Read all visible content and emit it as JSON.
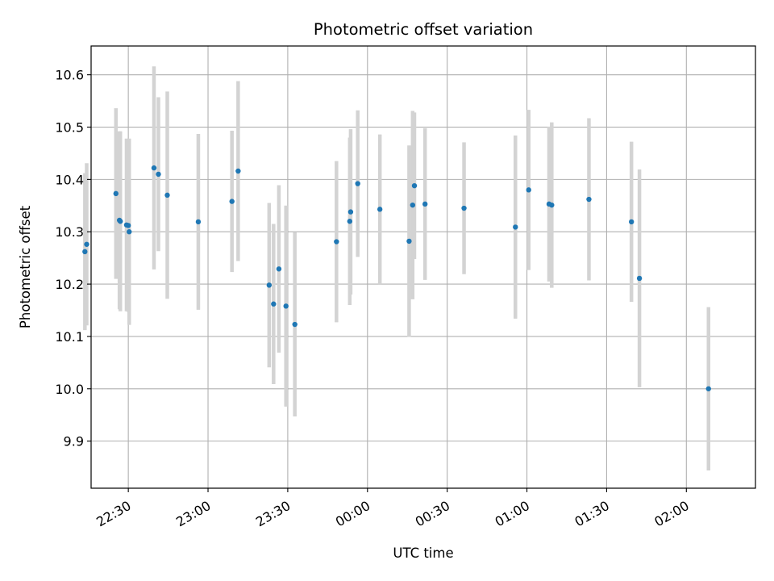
{
  "chart_data": {
    "type": "scatter",
    "title": "Photometric offset variation",
    "xlabel": "UTC time",
    "ylabel": "Photometric offset",
    "grid": true,
    "x_axis": {
      "kind": "time",
      "range": [
        "22:16",
        "02:26"
      ],
      "ticks": [
        "22:30",
        "23:00",
        "23:30",
        "00:00",
        "00:30",
        "01:00",
        "01:30",
        "02:00"
      ]
    },
    "y_axis": {
      "range": [
        9.81,
        10.655
      ],
      "ticks": [
        "9.9",
        "10.0",
        "10.1",
        "10.2",
        "10.3",
        "10.4",
        "10.5",
        "10.6"
      ]
    },
    "colors": {
      "marker": "#1f77b4",
      "errorbar": "#d3d3d3",
      "grid": "#b0b0b0"
    },
    "points": [
      {
        "x": "22:13:40",
        "y": 10.262,
        "yerr": 0.15
      },
      {
        "x": "22:14:20",
        "y": 10.276,
        "yerr": 0.155
      },
      {
        "x": "22:25:20",
        "y": 10.373,
        "yerr": 0.163
      },
      {
        "x": "22:26:40",
        "y": 10.322,
        "yerr": 0.17
      },
      {
        "x": "22:27:00",
        "y": 10.32,
        "yerr": 0.172
      },
      {
        "x": "22:29:20",
        "y": 10.313,
        "yerr": 0.165
      },
      {
        "x": "22:30:00",
        "y": 10.312,
        "yerr": 0.165
      },
      {
        "x": "22:30:20",
        "y": 10.3,
        "yerr": 0.178
      },
      {
        "x": "22:39:40",
        "y": 10.422,
        "yerr": 0.194
      },
      {
        "x": "22:41:20",
        "y": 10.41,
        "yerr": 0.147
      },
      {
        "x": "22:44:40",
        "y": 10.37,
        "yerr": 0.198
      },
      {
        "x": "22:56:20",
        "y": 10.319,
        "yerr": 0.168
      },
      {
        "x": "23:09:00",
        "y": 10.358,
        "yerr": 0.135
      },
      {
        "x": "23:11:20",
        "y": 10.416,
        "yerr": 0.172
      },
      {
        "x": "23:23:00",
        "y": 10.198,
        "yerr": 0.157
      },
      {
        "x": "23:24:40",
        "y": 10.162,
        "yerr": 0.153
      },
      {
        "x": "23:26:40",
        "y": 10.229,
        "yerr": 0.16
      },
      {
        "x": "23:29:20",
        "y": 10.158,
        "yerr": 0.192
      },
      {
        "x": "23:32:40",
        "y": 10.123,
        "yerr": 0.176
      },
      {
        "x": "23:48:20",
        "y": 10.281,
        "yerr": 0.154
      },
      {
        "x": "23:53:20",
        "y": 10.32,
        "yerr": 0.16
      },
      {
        "x": "23:53:40",
        "y": 10.338,
        "yerr": 0.158
      },
      {
        "x": "23:56:20",
        "y": 10.392,
        "yerr": 0.14
      },
      {
        "x": "00:04:40",
        "y": 10.343,
        "yerr": 0.143
      },
      {
        "x": "00:15:40",
        "y": 10.282,
        "yerr": 0.183
      },
      {
        "x": "00:17:00",
        "y": 10.351,
        "yerr": 0.18
      },
      {
        "x": "00:17:40",
        "y": 10.388,
        "yerr": 0.14
      },
      {
        "x": "00:21:40",
        "y": 10.353,
        "yerr": 0.145
      },
      {
        "x": "00:36:20",
        "y": 10.345,
        "yerr": 0.126
      },
      {
        "x": "00:55:40",
        "y": 10.309,
        "yerr": 0.175
      },
      {
        "x": "01:00:40",
        "y": 10.38,
        "yerr": 0.153
      },
      {
        "x": "01:08:20",
        "y": 10.353,
        "yerr": 0.148
      },
      {
        "x": "01:09:20",
        "y": 10.351,
        "yerr": 0.158
      },
      {
        "x": "01:23:20",
        "y": 10.362,
        "yerr": 0.155
      },
      {
        "x": "01:39:20",
        "y": 10.319,
        "yerr": 0.153
      },
      {
        "x": "01:42:20",
        "y": 10.211,
        "yerr": 0.208
      },
      {
        "x": "02:08:20",
        "y": 10.0,
        "yerr": 0.156
      }
    ]
  }
}
